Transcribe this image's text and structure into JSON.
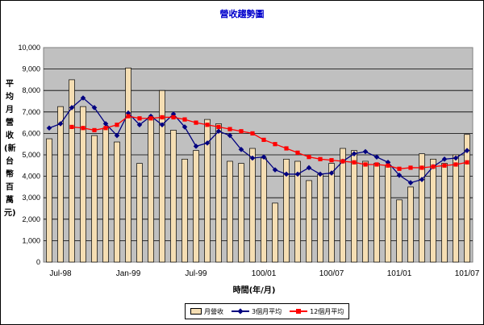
{
  "chart_data": {
    "type": "bar",
    "title": "營收趨勢圖",
    "xlabel": "時間(年/月)",
    "ylabel": "平均月營收(新台幣百萬元)",
    "ylim": [
      0,
      10000
    ],
    "y_ticks": [
      "0",
      "1,000",
      "2,000",
      "3,000",
      "4,000",
      "5,000",
      "6,000",
      "7,000",
      "8,000",
      "9,000",
      "10,000"
    ],
    "grid": true,
    "legend_position": "bottom",
    "x_tick_labels": [
      {
        "index": 1,
        "label": "Jul-98"
      },
      {
        "index": 7,
        "label": "Jan-99"
      },
      {
        "index": 13,
        "label": "Jul-99"
      },
      {
        "index": 19,
        "label": "100/01"
      },
      {
        "index": 25,
        "label": "100/07"
      },
      {
        "index": 31,
        "label": "101/01"
      },
      {
        "index": 37,
        "label": "101/07"
      }
    ],
    "series": [
      {
        "name": "月營收",
        "kind": "bar",
        "color": "#f5deb3",
        "values": [
          5750,
          7250,
          8500,
          7250,
          5900,
          6250,
          5600,
          9050,
          4600,
          6750,
          8000,
          6150,
          4800,
          5200,
          6650,
          6450,
          4700,
          4600,
          5300,
          4850,
          2750,
          4800,
          4700,
          3800,
          4100,
          4600,
          5300,
          5200,
          4700,
          4600,
          4500,
          2900,
          3500,
          5050,
          4800,
          4600,
          5000,
          5950
        ]
      },
      {
        "name": "3個月平均",
        "kind": "line",
        "color": "#000080",
        "marker": "diamond",
        "values": [
          6250,
          6450,
          7200,
          7650,
          7200,
          6450,
          5900,
          6950,
          6400,
          6800,
          6400,
          6900,
          6300,
          5400,
          5550,
          6100,
          5900,
          5250,
          4850,
          4900,
          4300,
          4100,
          4100,
          4400,
          4100,
          4150,
          4700,
          5050,
          5150,
          4900,
          4650,
          4050,
          3700,
          3850,
          4450,
          4800,
          4850,
          5200
        ]
      },
      {
        "name": "12個月平均",
        "kind": "line",
        "color": "#ff0000",
        "marker": "square",
        "values": [
          null,
          null,
          6300,
          6250,
          6150,
          6250,
          6400,
          6800,
          6700,
          6700,
          6750,
          6750,
          6650,
          6500,
          6400,
          6300,
          6200,
          6100,
          6000,
          5700,
          5500,
          5300,
          5100,
          4900,
          4800,
          4750,
          4700,
          4650,
          4550,
          4550,
          4500,
          4350,
          4400,
          4400,
          4450,
          4500,
          4550,
          4650
        ]
      }
    ]
  }
}
